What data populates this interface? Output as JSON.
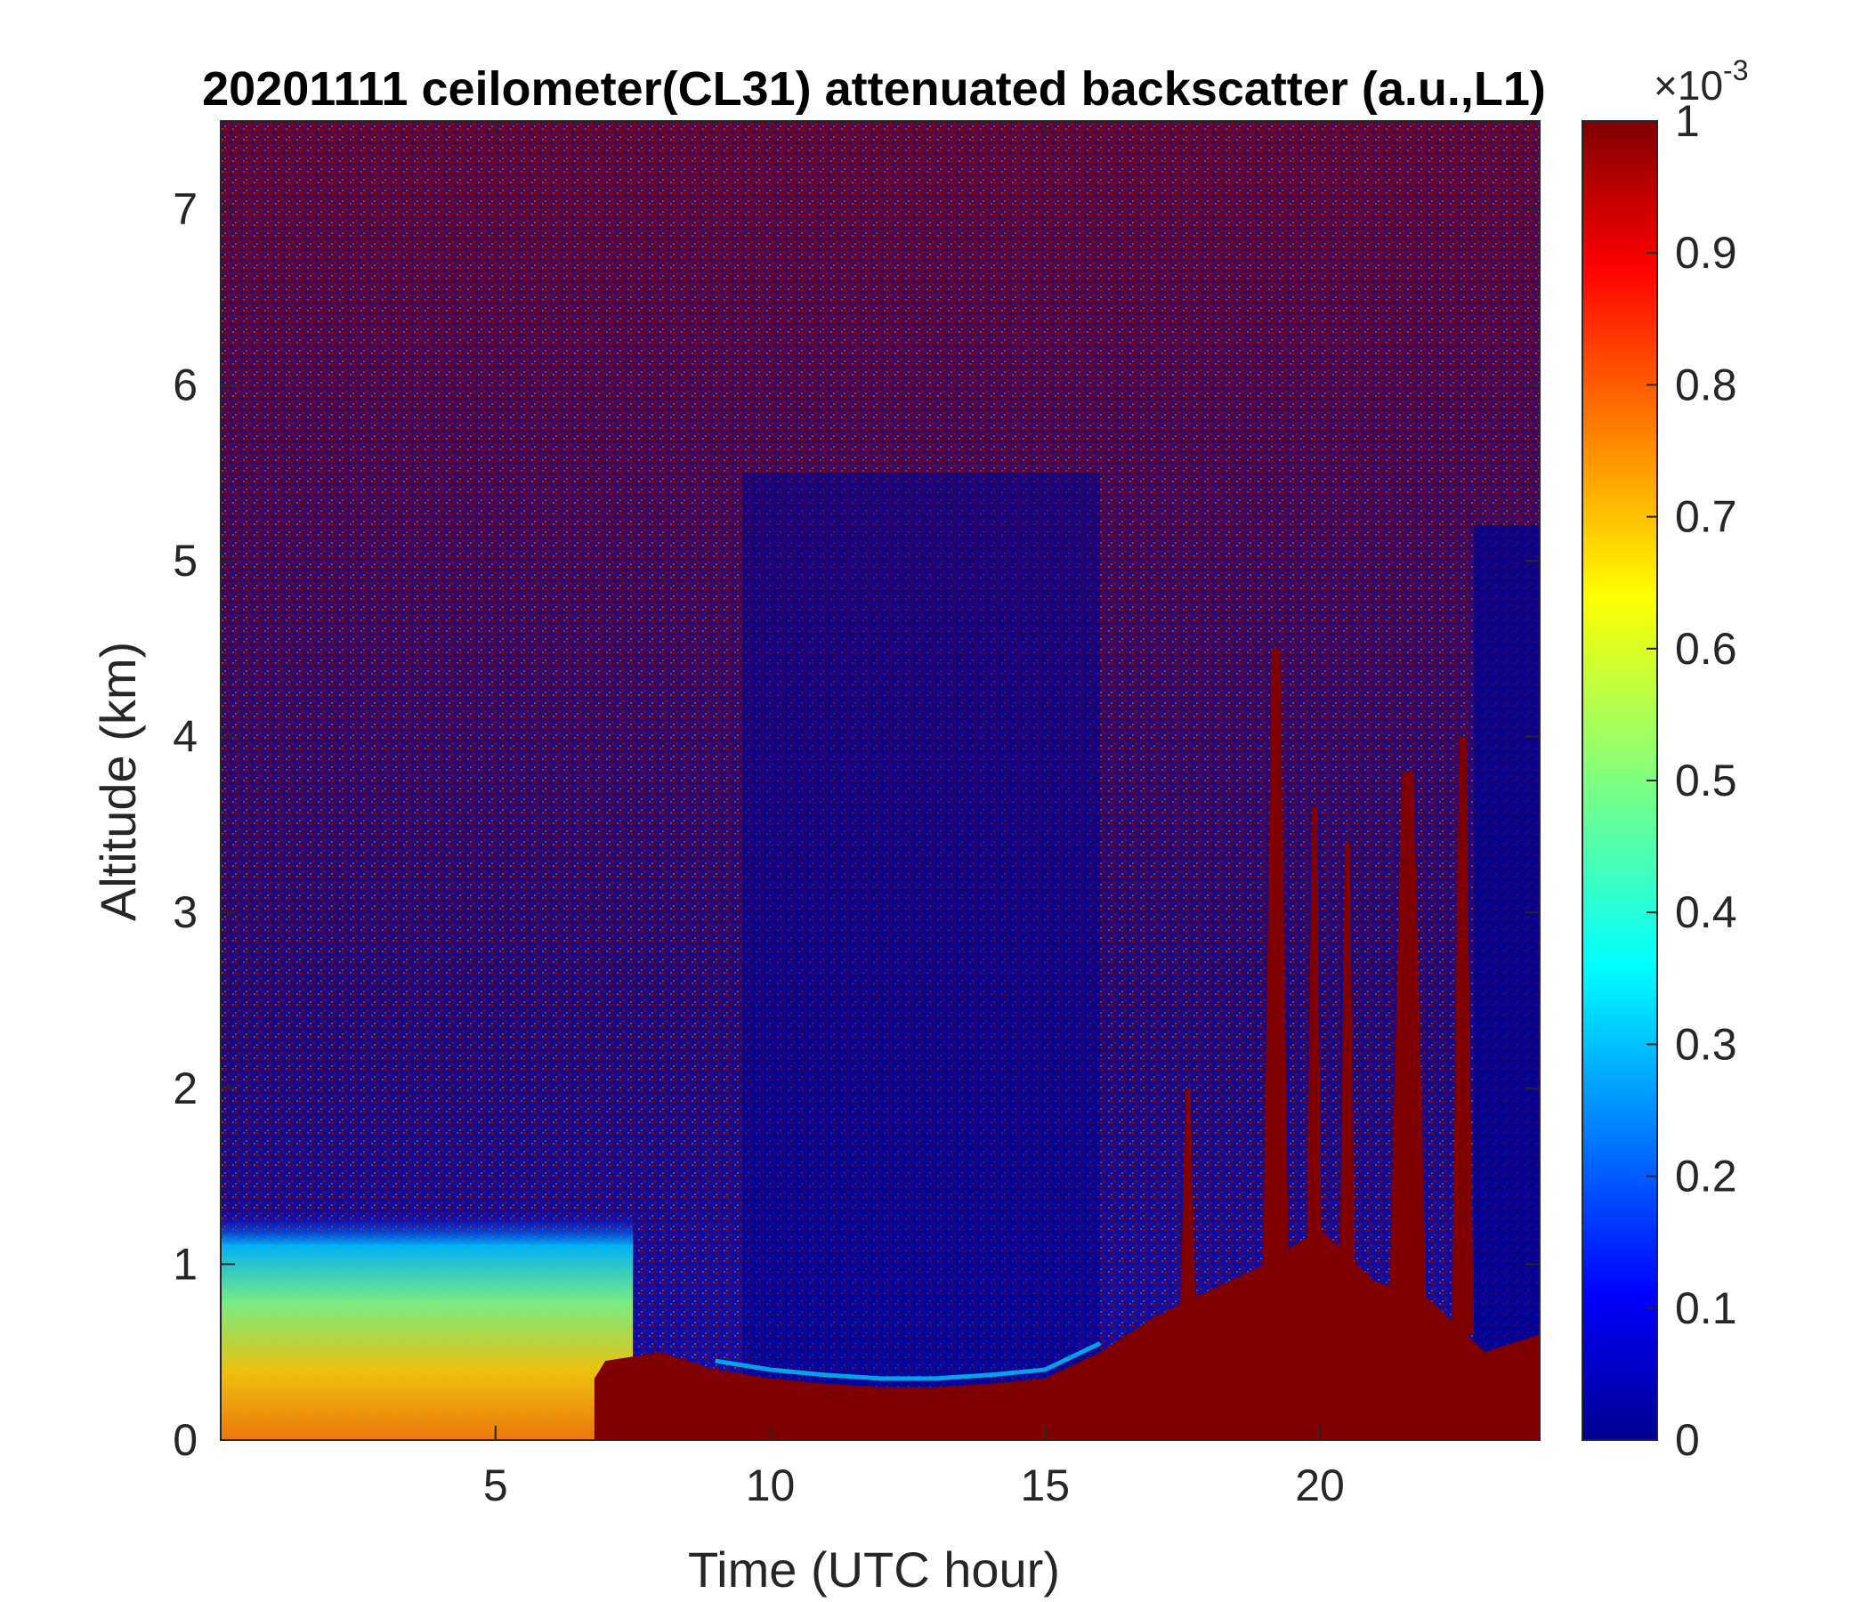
{
  "chart_data": {
    "type": "heatmap",
    "title": "20201111 ceilometer(CL31) attenuated backscatter (a.u.,L1)",
    "xlabel": "Time (UTC hour)",
    "ylabel": "Altitude (km)",
    "xlim": [
      0,
      24
    ],
    "ylim": [
      0,
      7.5
    ],
    "xticks": [
      5,
      10,
      15,
      20
    ],
    "yticks": [
      0,
      1,
      2,
      3,
      4,
      5,
      6,
      7
    ],
    "colorbar": {
      "colormap": "jet",
      "range": [
        0,
        1
      ],
      "ticks": [
        0,
        0.1,
        0.2,
        0.3,
        0.4,
        0.5,
        0.6,
        0.7,
        0.8,
        0.9,
        1
      ],
      "tick_labels": [
        "0",
        "0.1",
        "0.2",
        "0.3",
        "0.4",
        "0.5",
        "0.6",
        "0.7",
        "0.8",
        "0.9",
        "1"
      ],
      "exponent_label": "×10",
      "exponent": "-3"
    },
    "boundary_layer_top_km": [
      [
        6.8,
        0.35
      ],
      [
        7,
        0.45
      ],
      [
        8,
        0.5
      ],
      [
        9,
        0.4
      ],
      [
        10,
        0.35
      ],
      [
        11,
        0.32
      ],
      [
        12,
        0.3
      ],
      [
        13,
        0.3
      ],
      [
        14,
        0.32
      ],
      [
        15,
        0.35
      ],
      [
        16,
        0.5
      ],
      [
        17,
        0.7
      ],
      [
        18,
        0.85
      ],
      [
        19,
        1.0
      ],
      [
        20,
        1.2
      ],
      [
        21,
        0.9
      ],
      [
        22,
        0.8
      ],
      [
        23,
        0.5
      ],
      [
        24,
        0.6
      ]
    ],
    "high_backscatter_columns": [
      {
        "x": 19.2,
        "top_km": 4.5,
        "width_h": 0.5
      },
      {
        "x": 19.9,
        "top_km": 3.6,
        "width_h": 0.3
      },
      {
        "x": 20.5,
        "top_km": 3.4,
        "width_h": 0.3
      },
      {
        "x": 21.6,
        "top_km": 3.8,
        "width_h": 0.7
      },
      {
        "x": 22.6,
        "top_km": 4.0,
        "width_h": 0.4
      },
      {
        "x": 17.6,
        "top_km": 2.0,
        "width_h": 0.3
      }
    ]
  },
  "colors": {
    "low": "#00008f",
    "high": "#800000",
    "axis": "#262626"
  }
}
